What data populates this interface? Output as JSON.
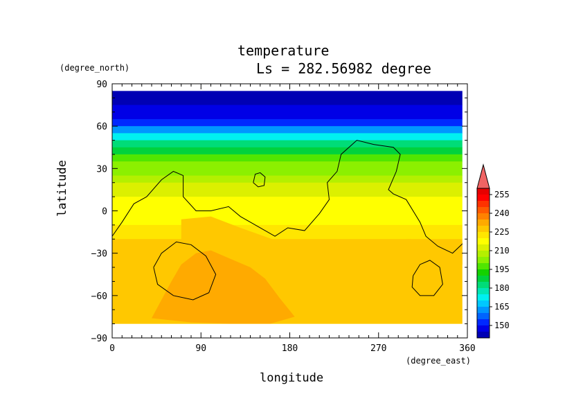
{
  "chart_data": {
    "type": "heatmap",
    "title": "temperature",
    "subtitle": "Ls = 282.56982 degree",
    "xlabel": "longitude",
    "ylabel": "latitude",
    "xunit": "(degree_east)",
    "yunit": "(degree_north)",
    "xlim": [
      0,
      360
    ],
    "ylim": [
      -90,
      90
    ],
    "xticks": [
      0,
      90,
      180,
      270,
      360
    ],
    "yticks": [
      -90,
      -60,
      -30,
      0,
      30,
      60,
      90
    ],
    "colorbar": {
      "levels": [
        140,
        145,
        150,
        155,
        160,
        165,
        170,
        175,
        180,
        185,
        190,
        195,
        200,
        205,
        210,
        215,
        220,
        225,
        230,
        235,
        240,
        245,
        250,
        255,
        260
      ],
      "labels": [
        150,
        165,
        180,
        195,
        210,
        225,
        240,
        255
      ],
      "colors": [
        "#0000b4",
        "#0000e6",
        "#0028ff",
        "#0064ff",
        "#0096ff",
        "#00c8ff",
        "#00f0f0",
        "#00e6b4",
        "#00dc78",
        "#00d23c",
        "#14d200",
        "#50e600",
        "#8cf000",
        "#b4f000",
        "#dcf000",
        "#ffff00",
        "#ffe600",
        "#ffc800",
        "#ffaa00",
        "#ff8200",
        "#ff5a00",
        "#ff3200",
        "#ff0000",
        "#e60000"
      ],
      "extend": "max"
    },
    "zonal_bands": [
      {
        "lat": 85,
        "value": 142
      },
      {
        "lat": 80,
        "value": 143
      },
      {
        "lat": 75,
        "value": 145
      },
      {
        "lat": 70,
        "value": 148
      },
      {
        "lat": 65,
        "value": 153
      },
      {
        "lat": 60,
        "value": 160
      },
      {
        "lat": 55,
        "value": 170
      },
      {
        "lat": 50,
        "value": 180
      },
      {
        "lat": 45,
        "value": 188
      },
      {
        "lat": 40,
        "value": 195
      },
      {
        "lat": 35,
        "value": 200
      },
      {
        "lat": 30,
        "value": 204
      },
      {
        "lat": 25,
        "value": 208
      },
      {
        "lat": 20,
        "value": 212
      },
      {
        "lat": 10,
        "value": 215
      },
      {
        "lat": 0,
        "value": 218
      },
      {
        "lat": -10,
        "value": 222
      },
      {
        "lat": -20,
        "value": 226
      },
      {
        "lat": -30,
        "value": 228
      },
      {
        "lat": -40,
        "value": 229
      },
      {
        "lat": -50,
        "value": 229
      },
      {
        "lat": -60,
        "value": 228
      },
      {
        "lat": -70,
        "value": 227
      },
      {
        "lat": -75,
        "value": 226
      },
      {
        "lat": -80,
        "value": 224
      }
    ],
    "warm_regions": [
      {
        "name": "southern-warm-core",
        "value": 232,
        "points": [
          [
            40,
            -76
          ],
          [
            60,
            -50
          ],
          [
            70,
            -38
          ],
          [
            85,
            -30
          ],
          [
            100,
            -28
          ],
          [
            120,
            -34
          ],
          [
            140,
            -40
          ],
          [
            155,
            -48
          ],
          [
            170,
            -62
          ],
          [
            185,
            -75
          ],
          [
            160,
            -80
          ],
          [
            120,
            -80
          ],
          [
            80,
            -79
          ]
        ]
      },
      {
        "name": "equatorial-warm-tongue",
        "value": 226,
        "points": [
          [
            70,
            -6
          ],
          [
            100,
            -4
          ],
          [
            130,
            -12
          ],
          [
            170,
            -22
          ],
          [
            240,
            -22
          ],
          [
            300,
            -20
          ],
          [
            360,
            -22
          ],
          [
            360,
            -38
          ],
          [
            300,
            -40
          ],
          [
            240,
            -36
          ],
          [
            180,
            -30
          ],
          [
            120,
            -26
          ],
          [
            70,
            -24
          ]
        ]
      }
    ],
    "contour_lines": [
      {
        "name": "equatorial-contour",
        "points": [
          [
            0,
            -18
          ],
          [
            10,
            -8
          ],
          [
            22,
            5
          ],
          [
            35,
            10
          ],
          [
            50,
            22
          ],
          [
            62,
            28
          ],
          [
            72,
            25
          ],
          [
            72,
            10
          ],
          [
            85,
            0
          ],
          [
            100,
            0
          ],
          [
            118,
            3
          ],
          [
            130,
            -4
          ],
          [
            150,
            -12
          ],
          [
            165,
            -18
          ],
          [
            178,
            -12
          ],
          [
            195,
            -14
          ],
          [
            210,
            -2
          ],
          [
            220,
            8
          ],
          [
            218,
            20
          ],
          [
            228,
            28
          ],
          [
            232,
            40
          ],
          [
            248,
            50
          ],
          [
            265,
            47
          ],
          [
            285,
            45
          ],
          [
            292,
            40
          ],
          [
            288,
            28
          ],
          [
            280,
            15
          ],
          [
            285,
            12
          ],
          [
            298,
            8
          ],
          [
            312,
            -8
          ],
          [
            318,
            -18
          ],
          [
            330,
            -25
          ],
          [
            345,
            -30
          ],
          [
            360,
            -20
          ]
        ]
      },
      {
        "name": "small-north-contour",
        "points": [
          [
            143,
            20
          ],
          [
            145,
            26
          ],
          [
            150,
            27
          ],
          [
            155,
            24
          ],
          [
            154,
            18
          ],
          [
            148,
            17
          ],
          [
            143,
            20
          ]
        ]
      },
      {
        "name": "south-west-contour",
        "points": [
          [
            42,
            -40
          ],
          [
            50,
            -30
          ],
          [
            65,
            -22
          ],
          [
            80,
            -24
          ],
          [
            95,
            -32
          ],
          [
            105,
            -45
          ],
          [
            98,
            -58
          ],
          [
            82,
            -63
          ],
          [
            62,
            -60
          ],
          [
            46,
            -52
          ],
          [
            42,
            -40
          ]
        ]
      },
      {
        "name": "south-east-contour",
        "points": [
          [
            305,
            -46
          ],
          [
            312,
            -38
          ],
          [
            322,
            -35
          ],
          [
            332,
            -40
          ],
          [
            335,
            -52
          ],
          [
            326,
            -60
          ],
          [
            312,
            -60
          ],
          [
            304,
            -54
          ],
          [
            305,
            -46
          ]
        ]
      }
    ]
  }
}
